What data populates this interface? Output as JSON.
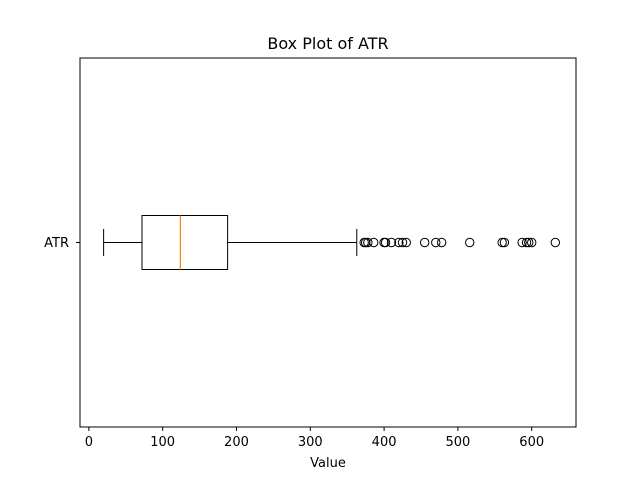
{
  "chart_data": {
    "type": "boxplot",
    "title": "Box Plot of ATR",
    "xlabel": "Value",
    "ylabel": "",
    "orientation": "horizontal",
    "xlim": [
      -12,
      660
    ],
    "xticks": [
      0,
      100,
      200,
      300,
      400,
      500,
      600
    ],
    "xtick_labels": [
      "0",
      "100",
      "200",
      "300",
      "400",
      "500",
      "600"
    ],
    "categories": [
      "ATR"
    ],
    "boxes": [
      {
        "name": "ATR",
        "whisker_low": 20,
        "q1": 72,
        "median": 124,
        "q3": 188,
        "whisker_high": 363,
        "outliers": [
          373,
          375,
          378,
          386,
          400,
          402,
          410,
          420,
          425,
          430,
          455,
          470,
          478,
          516,
          560,
          563,
          587,
          593,
          596,
          600,
          632
        ]
      }
    ],
    "colors": {
      "box": "#000000",
      "median": "#ff7f0e",
      "outlier": "#000000"
    },
    "grid": false,
    "legend": false
  }
}
